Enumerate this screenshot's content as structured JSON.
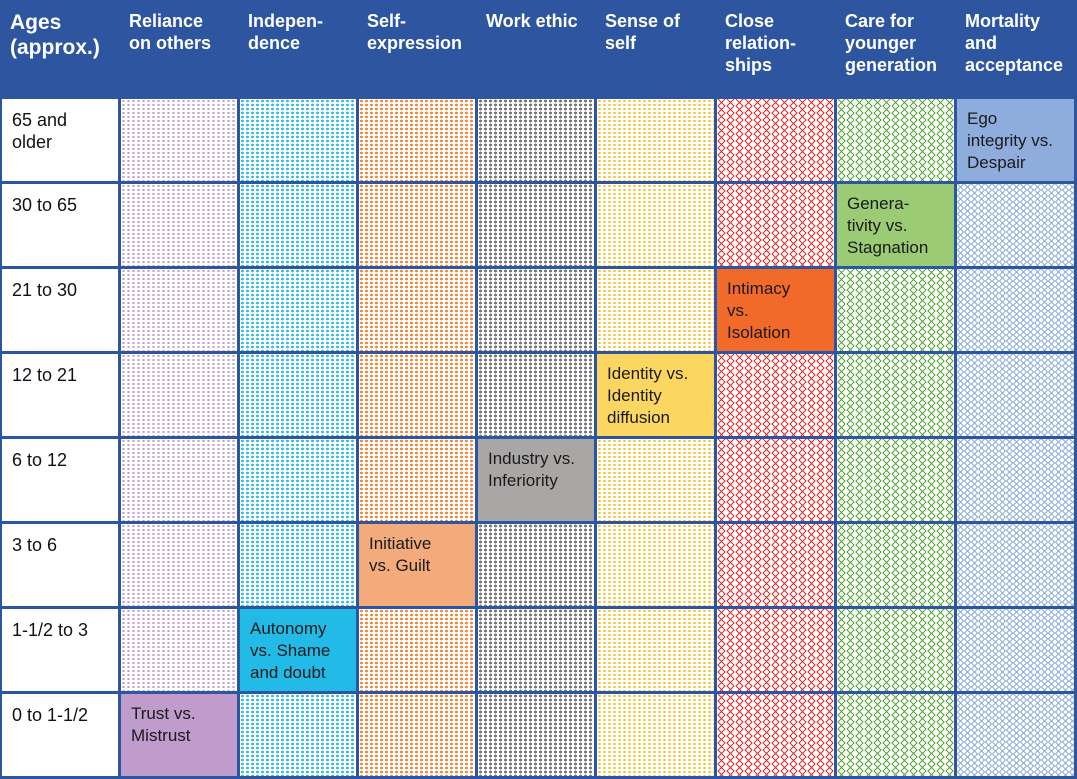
{
  "header": {
    "age_label": "Ages\n(approx.)",
    "columns": [
      {
        "label": "Reliance\non others",
        "color": "purple"
      },
      {
        "label": "Indepen-\ndence",
        "color": "cyan"
      },
      {
        "label": "Self-\nexpression",
        "color": "orange"
      },
      {
        "label": "Work ethic",
        "color": "gray"
      },
      {
        "label": "Sense of\nself",
        "color": "yellow"
      },
      {
        "label": "Close\nrelation-\nships",
        "color": "red"
      },
      {
        "label": "Care for\nyounger\ngeneration",
        "color": "green"
      },
      {
        "label": "Mortality\nand\nacceptance",
        "color": "blue"
      }
    ]
  },
  "rows": [
    {
      "age": "65 and\nolder",
      "stage_col": 7,
      "stage": "Ego\nintegrity vs.\nDespair"
    },
    {
      "age": "30 to 65",
      "stage_col": 6,
      "stage": "Genera-\ntivity vs.\nStagnation"
    },
    {
      "age": "21 to 30",
      "stage_col": 5,
      "stage": "Intimacy\nvs.\nIsolation"
    },
    {
      "age": "12 to 21",
      "stage_col": 4,
      "stage": "Identity vs.\nIdentity\ndiffusion"
    },
    {
      "age": "6 to 12",
      "stage_col": 3,
      "stage": "Industry vs.\nInferiority"
    },
    {
      "age": "3 to 6",
      "stage_col": 2,
      "stage": "Initiative\nvs. Guilt"
    },
    {
      "age": "1-1/2 to 3",
      "stage_col": 1,
      "stage": "Autonomy\nvs. Shame\nand doubt"
    },
    {
      "age": "0 to 1-1/2",
      "stage_col": 0,
      "stage": "Trust vs.\nMistrust"
    }
  ],
  "colors": {
    "header_bg": "#2d55a0",
    "header_text": "#ffffff"
  }
}
